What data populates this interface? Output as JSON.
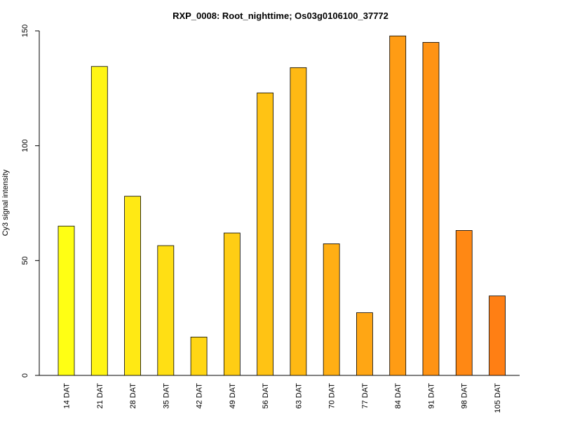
{
  "chart_data": {
    "type": "bar",
    "title": "RXP_0008: Root_nighttime; Os03g0106100_37772",
    "xlabel": "",
    "ylabel": "Cy3 signal intensity",
    "ylim": [
      0,
      150
    ],
    "yticks": [
      0,
      50,
      100,
      150
    ],
    "grid": false,
    "categories": [
      "14 DAT",
      "21 DAT",
      "28 DAT",
      "35 DAT",
      "42 DAT",
      "49 DAT",
      "56 DAT",
      "63 DAT",
      "70 DAT",
      "77 DAT",
      "84 DAT",
      "91 DAT",
      "98 DAT",
      "105 DAT"
    ],
    "values": [
      65,
      134.5,
      78,
      56.5,
      16.7,
      62,
      123,
      134,
      57.3,
      27.3,
      147.8,
      145,
      63.1,
      34.6
    ],
    "colors": [
      "#ffff14",
      "#fff514",
      "#ffe914",
      "#ffdf14",
      "#ffd614",
      "#ffcd14",
      "#ffc314",
      "#ffb914",
      "#ffaf14",
      "#ffa614",
      "#ff9c14",
      "#ff9314",
      "#ff8814",
      "#ff7f14"
    ]
  }
}
